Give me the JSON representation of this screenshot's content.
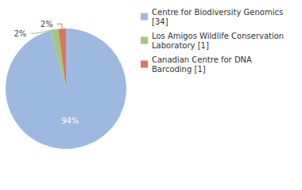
{
  "chart_data": {
    "type": "pie",
    "categories": [
      "Centre for Biodiversity Genomics [34]",
      "Los Amigos Wildlife Conservation Laboratory [1]",
      "Canadian Centre for DNA Barcoding [1]"
    ],
    "values": [
      94,
      2,
      2
    ],
    "value_labels": [
      "94%",
      "2%",
      "2%"
    ],
    "colors": [
      "#9db9e0",
      "#a3c77d",
      "#e0735e"
    ],
    "data_labels": true,
    "legend": "top-right"
  }
}
